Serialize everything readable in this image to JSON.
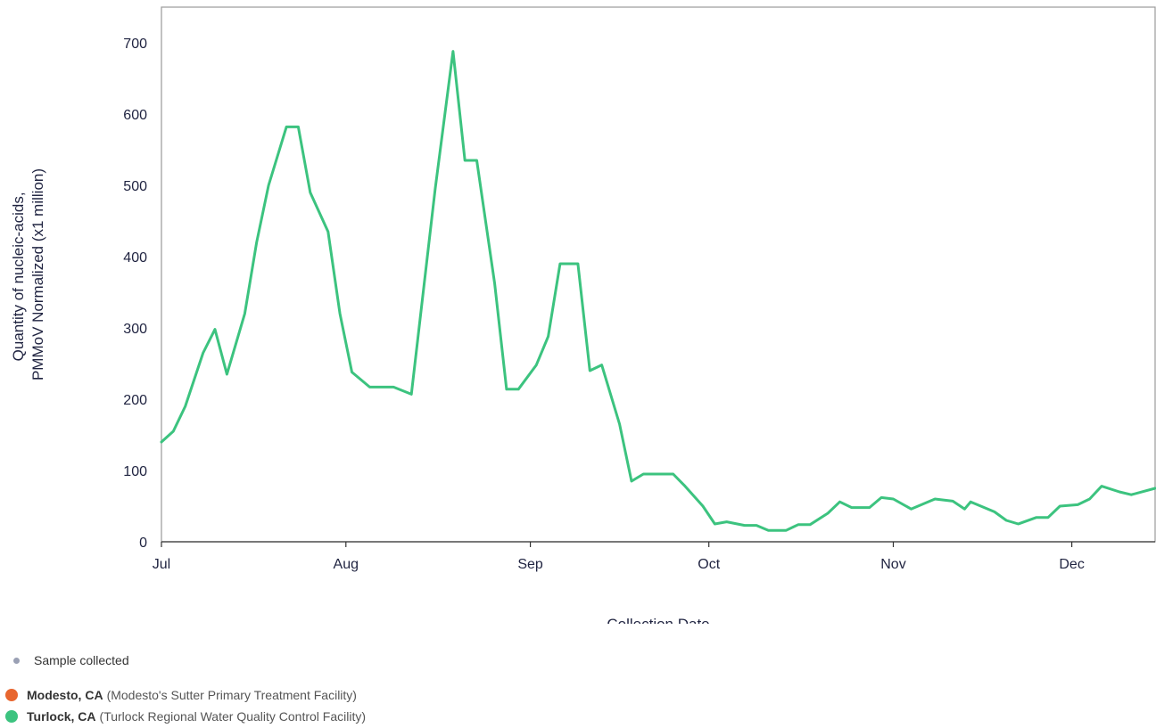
{
  "chart_data": {
    "type": "line",
    "title": "",
    "xlabel": "Collection Date",
    "ylabel_lines": [
      "Quantity of nucleic-acids,",
      "PMMoV Normalized (x1 million)"
    ],
    "ylim": [
      0,
      750
    ],
    "yticks": [
      0,
      100,
      200,
      300,
      400,
      500,
      600,
      700
    ],
    "x_range": [
      "2023-07-01",
      "2023-12-15"
    ],
    "xticks": [
      {
        "date": "2023-07-01",
        "label": "Jul"
      },
      {
        "date": "2023-08-01",
        "label": "Aug"
      },
      {
        "date": "2023-09-01",
        "label": "Sep"
      },
      {
        "date": "2023-10-01",
        "label": "Oct"
      },
      {
        "date": "2023-11-01",
        "label": "Nov"
      },
      {
        "date": "2023-12-01",
        "label": "Dec"
      }
    ],
    "grid": false,
    "legend_position": "bottom-left",
    "series": [
      {
        "name": "Turlock, CA",
        "color": "#3cc37f",
        "points": [
          [
            "2023-07-01",
            140
          ],
          [
            "2023-07-03",
            155
          ],
          [
            "2023-07-05",
            190
          ],
          [
            "2023-07-08",
            265
          ],
          [
            "2023-07-10",
            298
          ],
          [
            "2023-07-12",
            235
          ],
          [
            "2023-07-15",
            320
          ],
          [
            "2023-07-17",
            420
          ],
          [
            "2023-07-19",
            500
          ],
          [
            "2023-07-22",
            582
          ],
          [
            "2023-07-24",
            582
          ],
          [
            "2023-07-26",
            490
          ],
          [
            "2023-07-29",
            435
          ],
          [
            "2023-07-31",
            320
          ],
          [
            "2023-08-02",
            238
          ],
          [
            "2023-08-05",
            217
          ],
          [
            "2023-08-09",
            217
          ],
          [
            "2023-08-12",
            207
          ],
          [
            "2023-08-16",
            495
          ],
          [
            "2023-08-19",
            688
          ],
          [
            "2023-08-21",
            535
          ],
          [
            "2023-08-23",
            535
          ],
          [
            "2023-08-26",
            362
          ],
          [
            "2023-08-28",
            214
          ],
          [
            "2023-08-30",
            214
          ],
          [
            "2023-09-02",
            248
          ],
          [
            "2023-09-04",
            288
          ],
          [
            "2023-09-06",
            390
          ],
          [
            "2023-09-09",
            390
          ],
          [
            "2023-09-11",
            240
          ],
          [
            "2023-09-13",
            248
          ],
          [
            "2023-09-16",
            165
          ],
          [
            "2023-09-18",
            85
          ],
          [
            "2023-09-20",
            95
          ],
          [
            "2023-09-23",
            95
          ],
          [
            "2023-09-25",
            95
          ],
          [
            "2023-09-27",
            78
          ],
          [
            "2023-09-30",
            50
          ],
          [
            "2023-10-02",
            25
          ],
          [
            "2023-10-04",
            28
          ],
          [
            "2023-10-07",
            23
          ],
          [
            "2023-10-09",
            23
          ],
          [
            "2023-10-11",
            16
          ],
          [
            "2023-10-14",
            16
          ],
          [
            "2023-10-16",
            24
          ],
          [
            "2023-10-18",
            24
          ],
          [
            "2023-10-21",
            40
          ],
          [
            "2023-10-23",
            56
          ],
          [
            "2023-10-25",
            48
          ],
          [
            "2023-10-28",
            48
          ],
          [
            "2023-10-30",
            62
          ],
          [
            "2023-11-01",
            60
          ],
          [
            "2023-11-04",
            46
          ],
          [
            "2023-11-06",
            53
          ],
          [
            "2023-11-08",
            60
          ],
          [
            "2023-11-11",
            57
          ],
          [
            "2023-11-13",
            46
          ],
          [
            "2023-11-14",
            56
          ],
          [
            "2023-11-18",
            42
          ],
          [
            "2023-11-20",
            30
          ],
          [
            "2023-11-22",
            25
          ],
          [
            "2023-11-25",
            34
          ],
          [
            "2023-11-27",
            34
          ],
          [
            "2023-11-29",
            50
          ],
          [
            "2023-12-02",
            52
          ],
          [
            "2023-12-04",
            60
          ],
          [
            "2023-12-06",
            78
          ],
          [
            "2023-12-09",
            70
          ],
          [
            "2023-12-11",
            66
          ],
          [
            "2023-12-15",
            75
          ]
        ]
      }
    ]
  },
  "legend": {
    "sample": {
      "label": "Sample collected",
      "color": "#9aa0b4"
    },
    "sites": [
      {
        "name": "Modesto, CA",
        "facility": "(Modesto's Sutter Primary Treatment Facility)",
        "color": "#e8662f"
      },
      {
        "name": "Turlock, CA",
        "facility": "(Turlock Regional Water Quality Control Facility)",
        "color": "#3cc37f"
      }
    ]
  }
}
